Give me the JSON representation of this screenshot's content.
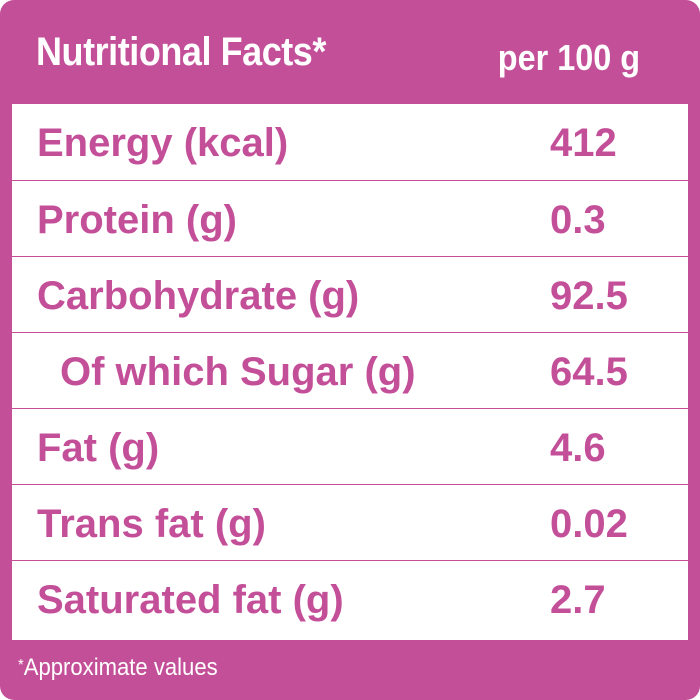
{
  "header": {
    "title": "Nutritional Facts*",
    "per": "per 100 g"
  },
  "rows": [
    {
      "label": "Energy (kcal)",
      "value": "412"
    },
    {
      "label": "Protein (g)",
      "value": "0.3"
    },
    {
      "label": "Carbohydrate (g)",
      "value": "92.5"
    },
    {
      "label": "Of which Sugar (g)",
      "value": "64.5"
    },
    {
      "label": "Fat (g)",
      "value": "4.6"
    },
    {
      "label": "Trans fat (g)",
      "value": "0.02"
    },
    {
      "label": "Saturated fat (g)",
      "value": "2.7"
    }
  ],
  "footnote": {
    "marker": "*",
    "text": "Approximate values"
  },
  "colors": {
    "brand": "#c44f99",
    "background": "#ffffff"
  }
}
